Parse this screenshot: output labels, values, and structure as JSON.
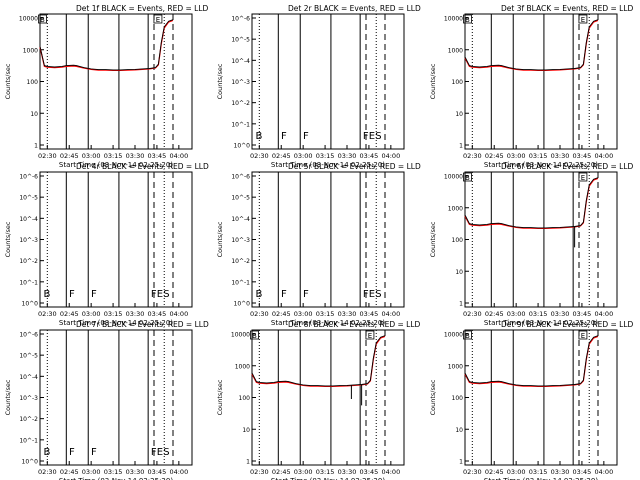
{
  "page": {
    "background": "#ffffff"
  },
  "colors": {
    "events": "#000000",
    "lld": "#ff0000",
    "axis": "#000000"
  },
  "chart_data": {
    "type": "line",
    "grid_layout": "3x3",
    "shared": {
      "title_suffix": " BLACK = Events, RED = LLD",
      "xlabel": "Start Time (03-Nov-14 02:25:20)",
      "ylabel": "Counts/sec",
      "x_ticks": [
        "02:30",
        "02:45",
        "03:00",
        "03:15",
        "03:30",
        "03:45",
        "04:00"
      ],
      "x_tick_minutes": [
        0,
        15,
        30,
        45,
        60,
        75,
        90
      ],
      "xlim_minutes": [
        -5,
        99
      ],
      "ylim": [
        1,
        15000
      ],
      "y_ticks_active": [
        "10000",
        "1000",
        "100",
        "10",
        "1"
      ],
      "y_ticks_empty": [
        "10^-6",
        "10^-5",
        "10^-4",
        "10^-3",
        "10^-2",
        "10^-1",
        "10^0"
      ],
      "solid_vlines_minutes": [
        13,
        28,
        49,
        69
      ],
      "dashed_vlines_minutes": [
        73,
        86
      ],
      "dotted_vlines_minutes": [
        0,
        80
      ],
      "markers": [
        {
          "label": "B",
          "minute": -4
        },
        {
          "label": "F",
          "minute": 13.5
        },
        {
          "label": "F",
          "minute": 28.5
        },
        {
          "label": "F",
          "minute": 69.5
        },
        {
          "label": "E",
          "minute": 73.5
        },
        {
          "label": "S",
          "minute": 78
        }
      ]
    },
    "panels": [
      {
        "title": "Det 1f",
        "has_data": true,
        "early_steep": true,
        "tail_dip": false,
        "mid_dip": false
      },
      {
        "title": "Det 2r",
        "has_data": false
      },
      {
        "title": "Det 3f",
        "has_data": true,
        "early_steep": false,
        "tail_dip": false,
        "mid_dip": false
      },
      {
        "title": "Det 4r",
        "has_data": false
      },
      {
        "title": "Det 5r",
        "has_data": false
      },
      {
        "title": "Det 6f",
        "has_data": true,
        "early_steep": false,
        "tail_dip": true,
        "mid_dip": false
      },
      {
        "title": "Det 7r",
        "has_data": false
      },
      {
        "title": "Det 8f",
        "has_data": true,
        "early_steep": false,
        "tail_dip": true,
        "mid_dip": true
      },
      {
        "title": "Det 9f",
        "has_data": true,
        "early_steep": false,
        "tail_dip": false,
        "mid_dip": false
      }
    ],
    "series_events_minutes": [
      -5,
      -2,
      0,
      5,
      10,
      13,
      18,
      20,
      25,
      30,
      35,
      40,
      45,
      50,
      55,
      60,
      65,
      70,
      74,
      76,
      78,
      80,
      83,
      86
    ],
    "series_events_values": [
      700,
      380,
      360,
      345,
      360,
      380,
      390,
      380,
      330,
      300,
      285,
      285,
      280,
      280,
      285,
      290,
      300,
      310,
      330,
      420,
      2000,
      6000,
      9000,
      10000
    ],
    "series_lld_values": [
      650,
      360,
      340,
      330,
      340,
      360,
      370,
      360,
      320,
      290,
      275,
      275,
      270,
      270,
      275,
      280,
      290,
      300,
      320,
      400,
      1800,
      5500,
      8500,
      9500
    ],
    "box_marks": [
      {
        "label": "B",
        "minute": -4
      },
      {
        "label": "E",
        "minute": 75
      }
    ]
  }
}
